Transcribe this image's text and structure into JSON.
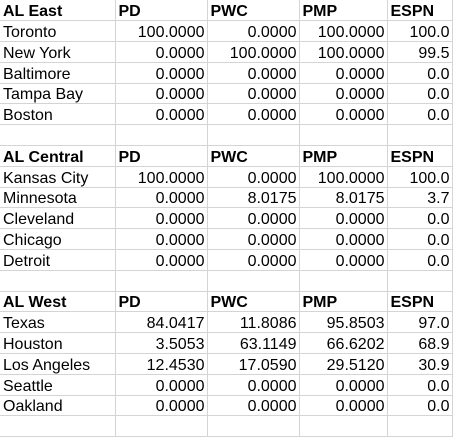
{
  "columns": [
    "PD",
    "PWC",
    "PMP",
    "ESPN"
  ],
  "divisions": [
    {
      "name": "AL East",
      "teams": [
        {
          "team": "Toronto",
          "values": [
            "100.0000",
            "0.0000",
            "100.0000",
            "100.0"
          ]
        },
        {
          "team": "New York",
          "values": [
            "0.0000",
            "100.0000",
            "100.0000",
            "99.5"
          ]
        },
        {
          "team": "Baltimore",
          "values": [
            "0.0000",
            "0.0000",
            "0.0000",
            "0.0"
          ]
        },
        {
          "team": "Tampa Bay",
          "values": [
            "0.0000",
            "0.0000",
            "0.0000",
            "0.0"
          ]
        },
        {
          "team": "Boston",
          "values": [
            "0.0000",
            "0.0000",
            "0.0000",
            "0.0"
          ]
        }
      ]
    },
    {
      "name": "AL Central",
      "teams": [
        {
          "team": "Kansas City",
          "values": [
            "100.0000",
            "0.0000",
            "100.0000",
            "100.0"
          ]
        },
        {
          "team": "Minnesota",
          "values": [
            "0.0000",
            "8.0175",
            "8.0175",
            "3.7"
          ]
        },
        {
          "team": "Cleveland",
          "values": [
            "0.0000",
            "0.0000",
            "0.0000",
            "0.0"
          ]
        },
        {
          "team": "Chicago",
          "values": [
            "0.0000",
            "0.0000",
            "0.0000",
            "0.0"
          ]
        },
        {
          "team": "Detroit",
          "values": [
            "0.0000",
            "0.0000",
            "0.0000",
            "0.0"
          ]
        }
      ]
    },
    {
      "name": "AL West",
      "teams": [
        {
          "team": "Texas",
          "values": [
            "84.0417",
            "11.8086",
            "95.8503",
            "97.0"
          ]
        },
        {
          "team": "Houston",
          "values": [
            "3.5053",
            "63.1149",
            "66.6202",
            "68.9"
          ]
        },
        {
          "team": "Los Angeles",
          "values": [
            "12.4530",
            "17.0590",
            "29.5120",
            "30.9"
          ]
        },
        {
          "team": "Seattle",
          "values": [
            "0.0000",
            "0.0000",
            "0.0000",
            "0.0"
          ]
        },
        {
          "team": "Oakland",
          "values": [
            "0.0000",
            "0.0000",
            "0.0000",
            "0.0"
          ]
        }
      ]
    }
  ]
}
